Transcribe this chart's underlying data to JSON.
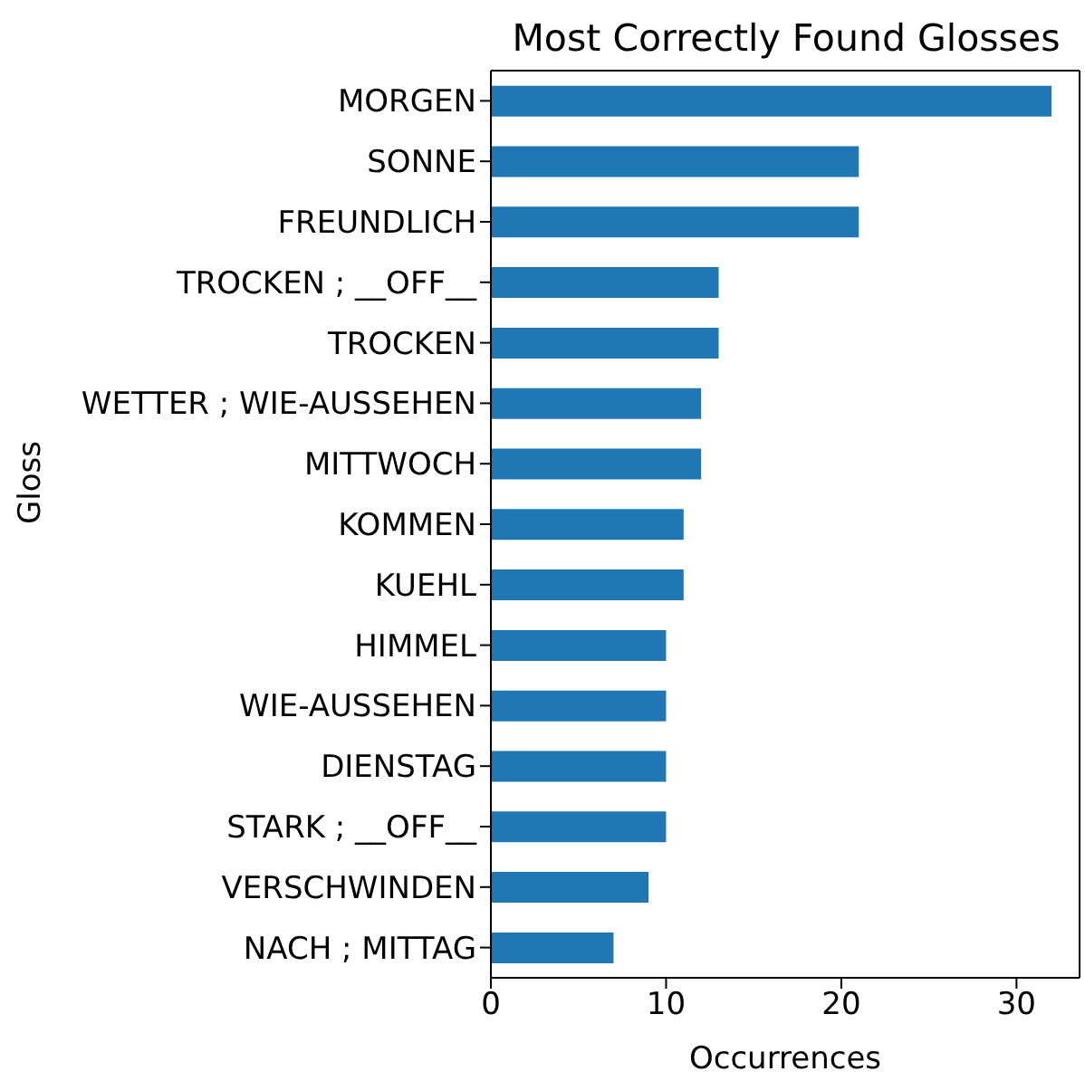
{
  "chart_data": {
    "type": "bar",
    "orientation": "horizontal",
    "title": "Most Correctly Found Glosses",
    "xlabel": "Occurrences",
    "ylabel": "Gloss",
    "categories": [
      "MORGEN",
      "SONNE",
      "FREUNDLICH",
      "TROCKEN ; __OFF__",
      "TROCKEN",
      "WETTER ; WIE-AUSSEHEN",
      "MITTWOCH",
      "KOMMEN",
      "KUEHL",
      "HIMMEL",
      "WIE-AUSSEHEN",
      "DIENSTAG",
      "STARK ; __OFF__",
      "VERSCHWINDEN",
      "NACH ; MITTAG"
    ],
    "values": [
      32,
      21,
      21,
      13,
      13,
      12,
      12,
      11,
      11,
      10,
      10,
      10,
      10,
      9,
      7
    ],
    "color": "#1f77b4",
    "xlim": [
      0,
      33.6
    ],
    "xticks": [
      0,
      10,
      20,
      30
    ],
    "grid": false
  }
}
